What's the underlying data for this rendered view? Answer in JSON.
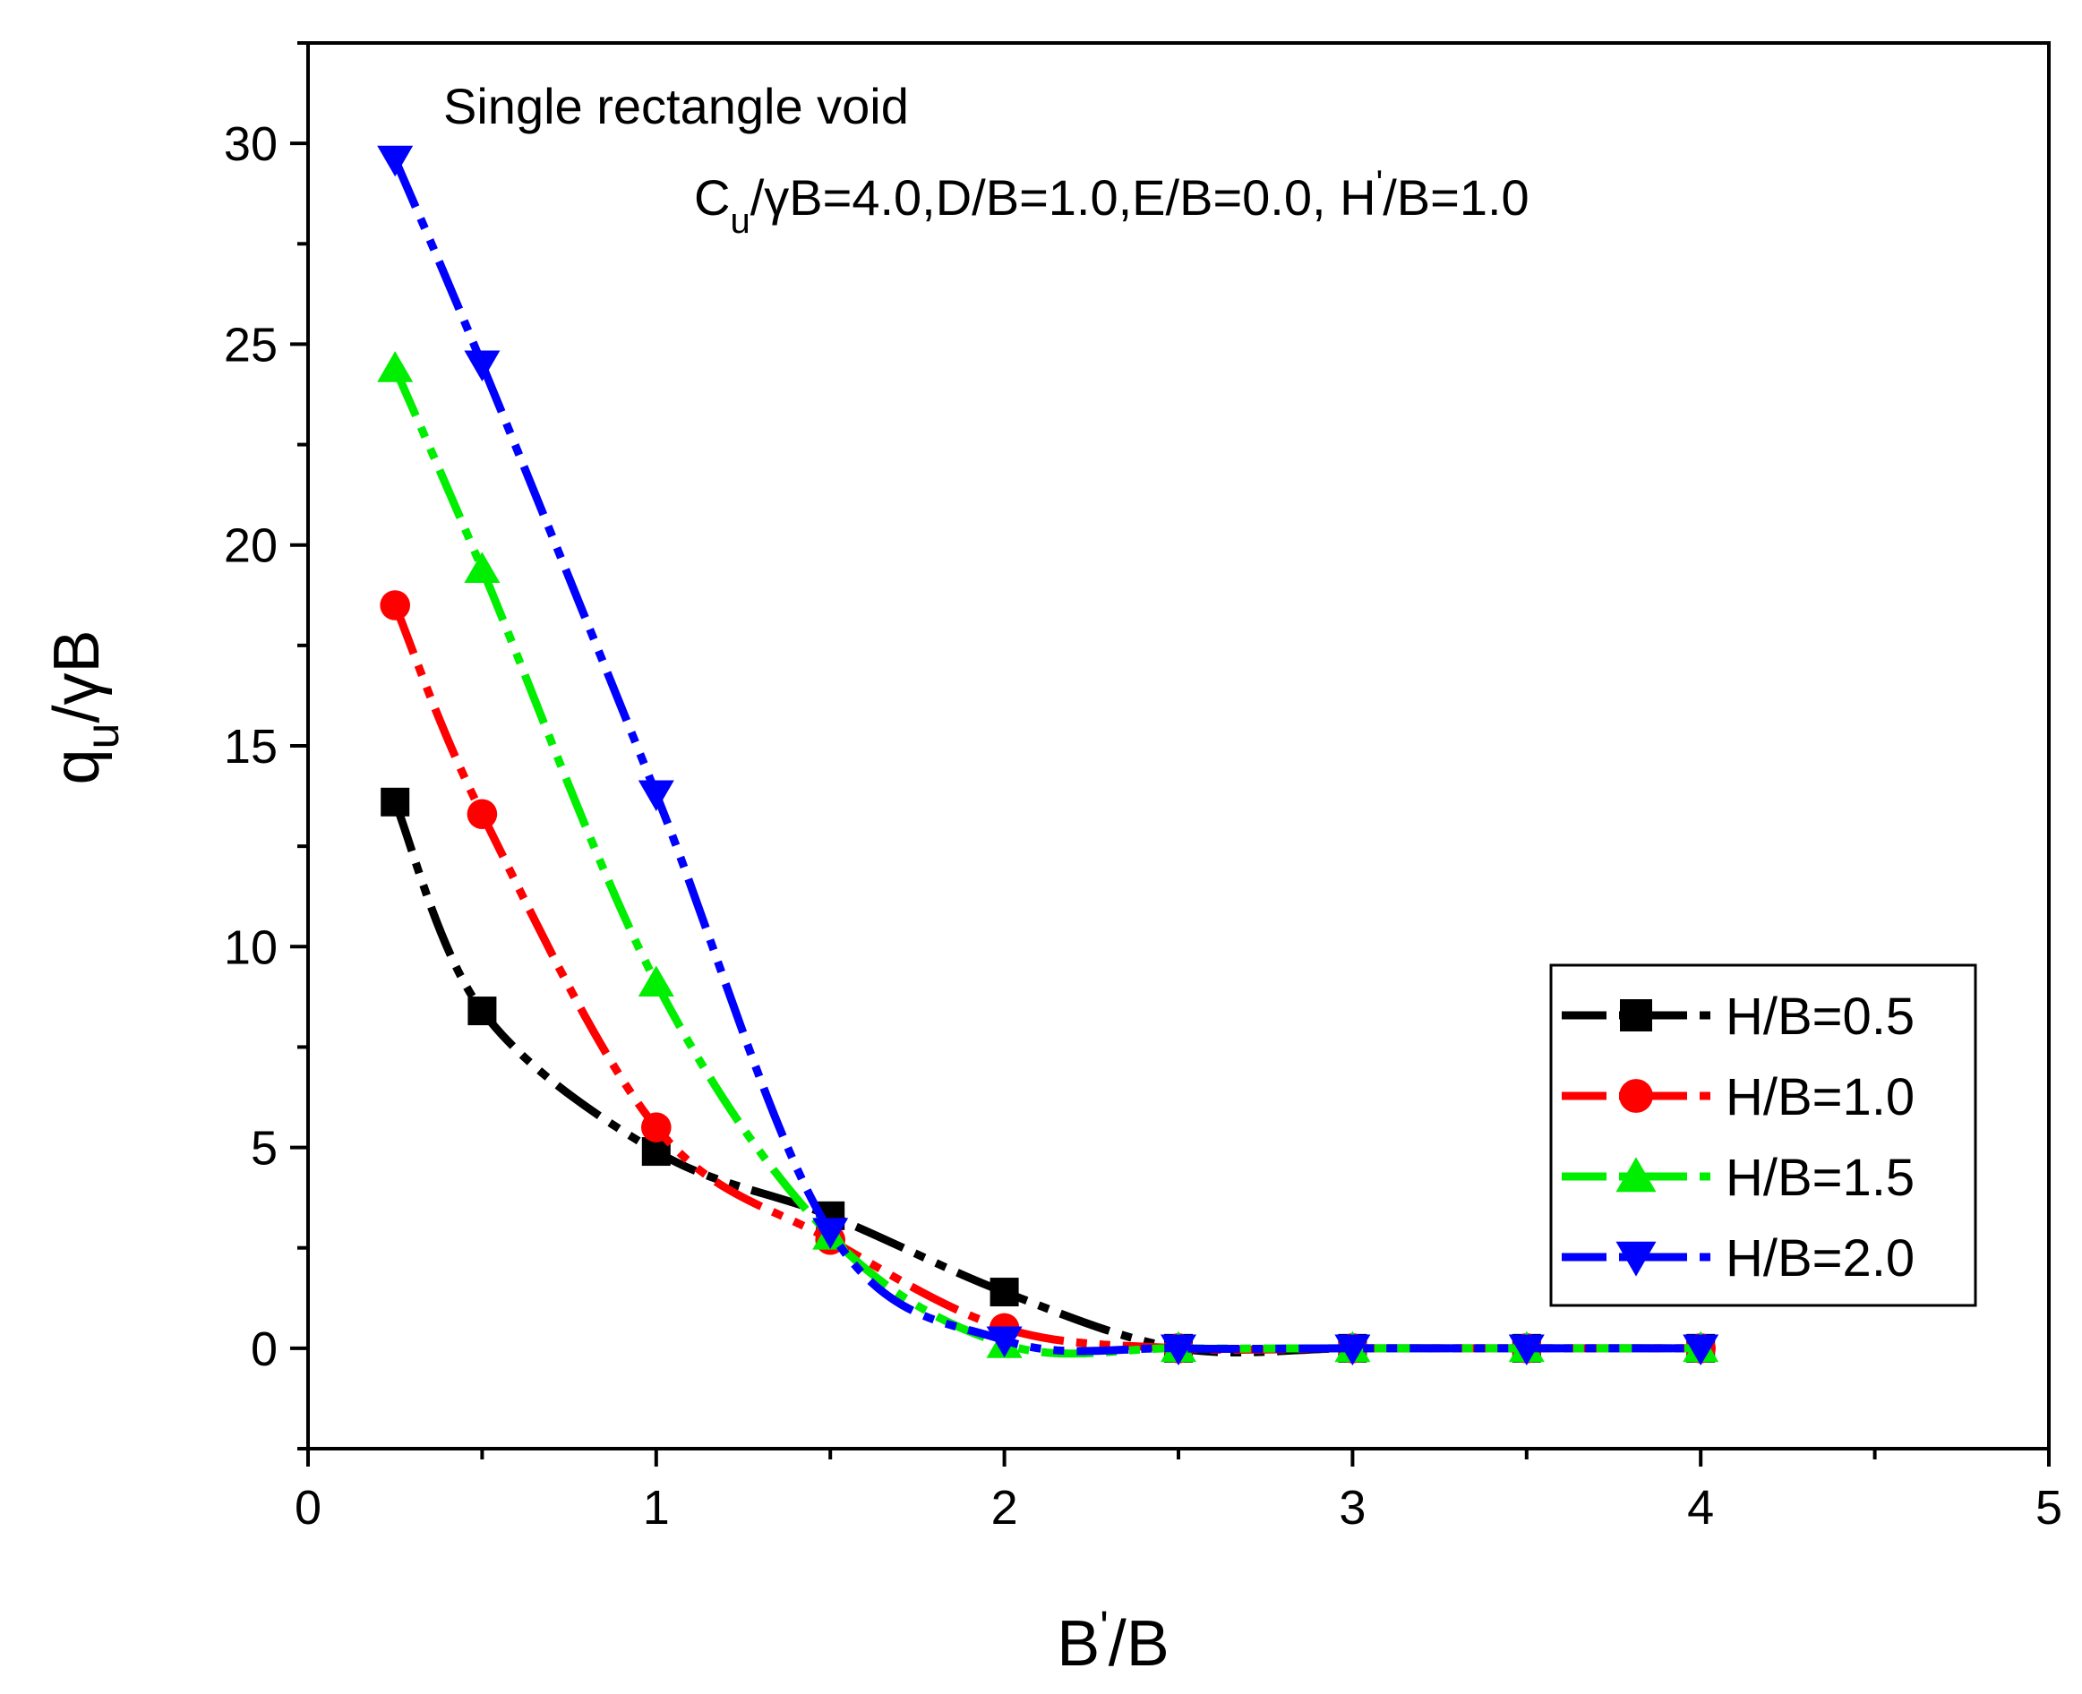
{
  "chart_data": {
    "type": "line",
    "title": "",
    "annotations": {
      "line1": "Single rectangle void",
      "line2_parts": [
        "C",
        "u",
        "/γB=4.0,D/B=1.0,E/B=0.0, H",
        "'",
        "/B=1.0"
      ]
    },
    "xlabel_parts": [
      "B",
      "'",
      "/B"
    ],
    "ylabel_parts": [
      "q",
      "u",
      "/γB"
    ],
    "xlim": [
      0,
      5
    ],
    "ylim": [
      -2.5,
      32.5
    ],
    "xticks": [
      0,
      1,
      2,
      3,
      4,
      5
    ],
    "yticks": [
      0,
      5,
      10,
      15,
      20,
      25,
      30
    ],
    "xtick_labels": [
      "0",
      "1",
      "2",
      "3",
      "4",
      "5"
    ],
    "ytick_labels": [
      "0",
      "5",
      "10",
      "15",
      "20",
      "25",
      "30"
    ],
    "legend_position": "right-middle",
    "x": [
      0.25,
      0.5,
      1.0,
      1.5,
      2.0,
      2.5,
      3.0,
      3.5,
      4.0
    ],
    "series": [
      {
        "name": "H/B=0.5",
        "color": "#000000",
        "marker": "square",
        "values": [
          13.6,
          8.4,
          4.9,
          3.3,
          1.4,
          0.0,
          0.0,
          0.0,
          0.0
        ]
      },
      {
        "name": "H/B=1.0",
        "color": "#ff0000",
        "marker": "circle",
        "values": [
          18.5,
          13.3,
          5.5,
          2.7,
          0.5,
          0.0,
          0.0,
          0.0,
          0.0
        ]
      },
      {
        "name": "H/B=1.5",
        "color": "#00ee00",
        "marker": "triangle-up",
        "values": [
          24.4,
          19.4,
          9.1,
          2.8,
          0.1,
          0.0,
          0.0,
          0.0,
          0.0
        ]
      },
      {
        "name": "H/B=2.0",
        "color": "#0000ff",
        "marker": "triangle-down",
        "values": [
          29.6,
          24.5,
          13.8,
          2.9,
          0.2,
          0.0,
          0.0,
          0.0,
          0.0
        ]
      }
    ]
  }
}
